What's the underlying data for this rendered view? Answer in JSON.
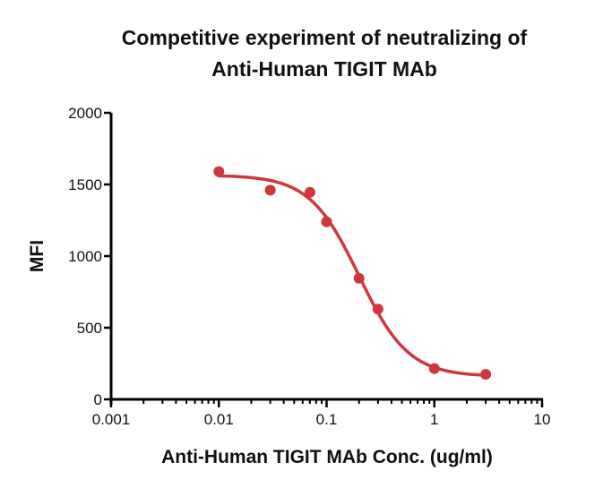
{
  "chart_data": {
    "type": "scatter",
    "title": [
      "Competitive experiment of neutralizing of",
      "Anti-Human TIGIT MAb"
    ],
    "xlabel": "Anti-Human TIGIT MAb Conc. (ug/ml)",
    "ylabel": "MFI",
    "xscale": "log",
    "xlim": [
      0.001,
      10
    ],
    "ylim": [
      0,
      2000
    ],
    "xticks": [
      0.001,
      0.01,
      0.1,
      1,
      10
    ],
    "xtick_labels": [
      "0.001",
      "0.01",
      "0.1",
      "1",
      "10"
    ],
    "yticks": [
      0,
      500,
      1000,
      1500,
      2000
    ],
    "ytick_labels": [
      "0",
      "500",
      "1000",
      "1500",
      "2000"
    ],
    "grid": false,
    "legend": "none",
    "color": "#d0363c",
    "series": [
      {
        "name": "Anti-Human TIGIT MAb",
        "x": [
          0.01,
          0.03,
          0.07,
          0.1,
          0.2,
          0.3,
          1,
          3
        ],
        "y": [
          1590,
          1460,
          1445,
          1240,
          845,
          630,
          215,
          175
        ]
      }
    ],
    "fit": {
      "type": "4PL",
      "bottom": 160,
      "top": 1565,
      "ec50": 0.2,
      "hill": 1.9,
      "x_range": [
        0.01,
        3
      ]
    }
  }
}
